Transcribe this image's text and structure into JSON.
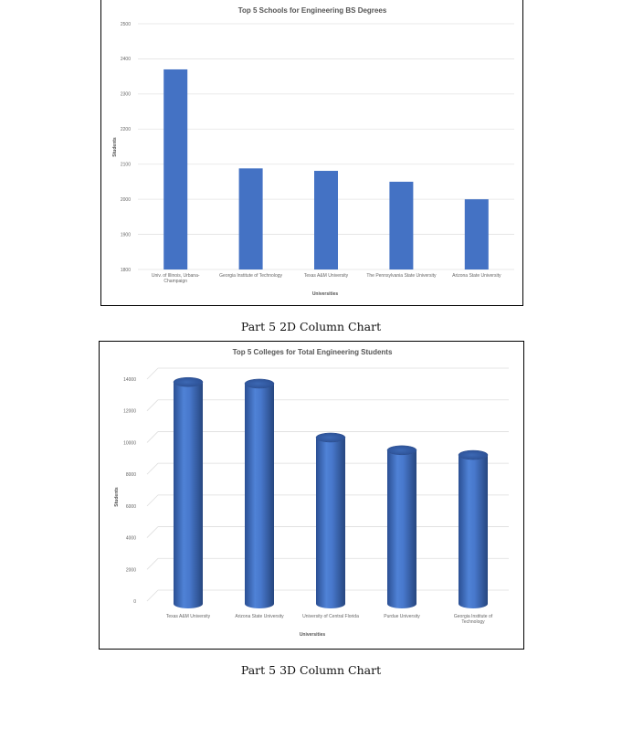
{
  "chart_data": [
    {
      "type": "bar",
      "style": "2D",
      "title": "Top 5 Schools for Engineering BS Degrees",
      "xlabel": "Universities",
      "ylabel": "Students",
      "categories": [
        [
          "Univ. of Illinois, Urbana-",
          "Champaign"
        ],
        [
          "Georgia Institute of Technology"
        ],
        [
          "Texas A&M University"
        ],
        [
          "The Pennsylvania State University"
        ],
        [
          "Arizona State University"
        ]
      ],
      "values": [
        2370,
        2088,
        2081,
        2050,
        2000
      ],
      "ylim": [
        1800,
        2500
      ],
      "yticks": [
        1800,
        1900,
        2000,
        2100,
        2200,
        2300,
        2400,
        2500
      ],
      "grid": true,
      "bar_color": "#4472C4"
    },
    {
      "type": "bar",
      "style": "3D cylinder",
      "title": "Top 5 Colleges for Total Engineering Students",
      "xlabel": "Universities",
      "ylabel": "Students",
      "categories": [
        [
          "Texas A&M University"
        ],
        [
          "Arizona State University"
        ],
        [
          "University of Central Florida"
        ],
        [
          "Purdue University"
        ],
        [
          "Georgia Institute of",
          "Technology"
        ]
      ],
      "values": [
        13700,
        13600,
        10200,
        9400,
        9100
      ],
      "ylim": [
        0,
        14000
      ],
      "yticks": [
        0,
        2000,
        4000,
        6000,
        8000,
        10000,
        12000,
        14000
      ],
      "grid": true,
      "bar_color": "#4472C4"
    }
  ],
  "captions": {
    "chart1": "Part 5 2D Column Chart",
    "chart2": "Part 5 3D Column Chart"
  }
}
